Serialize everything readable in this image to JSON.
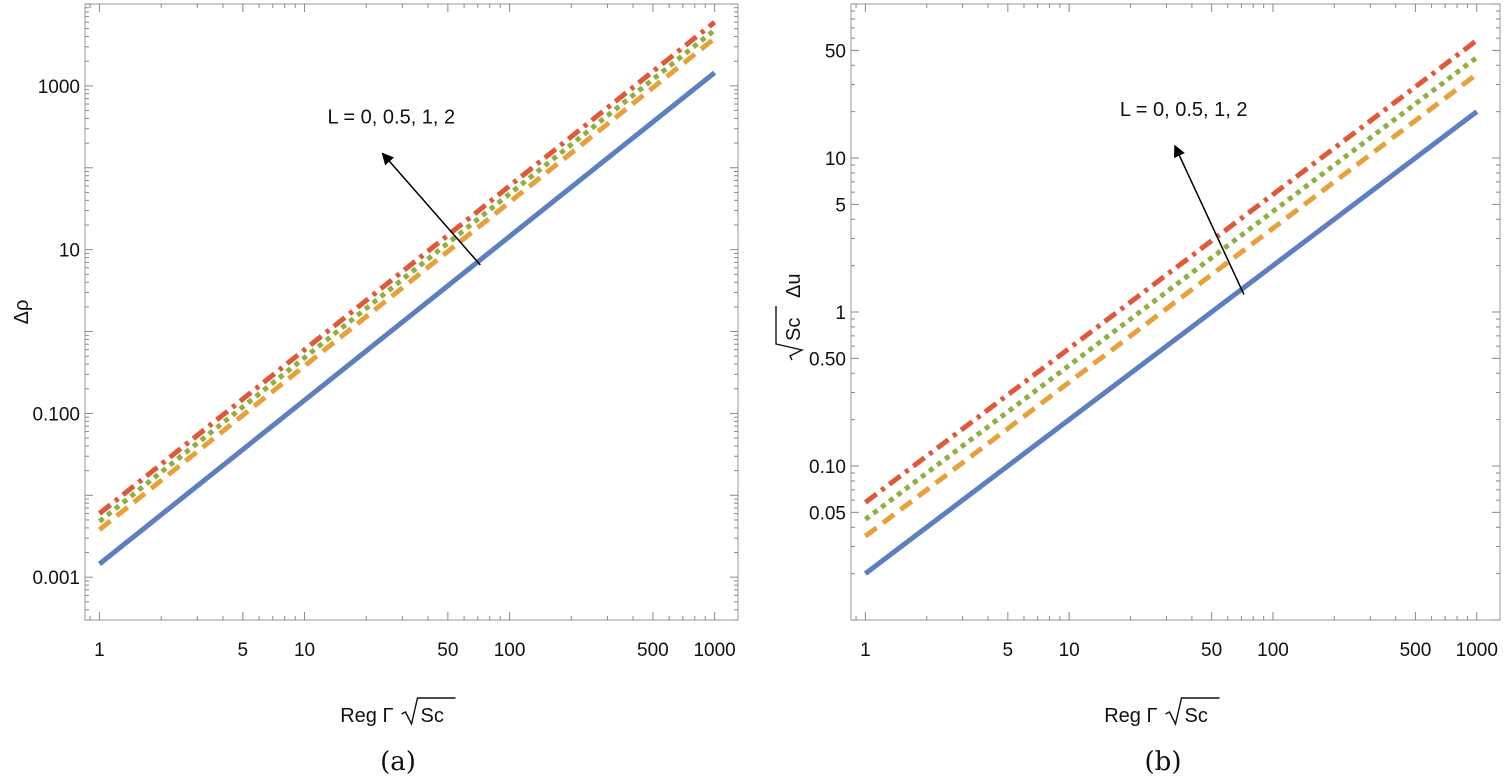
{
  "chart_data": [
    {
      "id": "a",
      "type": "line",
      "xscale": "log",
      "yscale": "log",
      "xlim": [
        0.85,
        1300
      ],
      "ylim": [
        0.0003,
        10000
      ],
      "xticks": [
        1,
        5,
        10,
        50,
        100,
        500,
        1000
      ],
      "xtick_labels": [
        "1",
        "5",
        "10",
        "50",
        "100",
        "500",
        "1000"
      ],
      "yticks": [
        0.001,
        0.1,
        10,
        1000
      ],
      "ytick_labels": [
        "0.001",
        "0.100",
        "10",
        "1000"
      ],
      "xlabel": "Reg Γ √Sc",
      "xlabel_parts": {
        "prefix": "Reg Γ",
        "radicand": "Sc"
      },
      "ylabel": "Δρ",
      "caption": "(a)",
      "annotation": {
        "text": "L = 0, 0.5, 1, 2",
        "arrow_from": [
          72,
          6.5
        ],
        "arrow_to": [
          24,
          150
        ]
      },
      "series": [
        {
          "name": "L = 0",
          "style": "solid",
          "color": "#5b7fbf",
          "x": [
            1,
            1000
          ],
          "y": [
            0.00145,
            1450
          ]
        },
        {
          "name": "L = 0.5",
          "style": "dashed",
          "color": "#e8a13a",
          "x": [
            1,
            1000
          ],
          "y": [
            0.0038,
            3800
          ]
        },
        {
          "name": "L = 1",
          "style": "dotted",
          "color": "#8fb040",
          "x": [
            1,
            1000
          ],
          "y": [
            0.0048,
            4800
          ]
        },
        {
          "name": "L = 2",
          "style": "dashdot",
          "color": "#e0583a",
          "x": [
            1,
            1000
          ],
          "y": [
            0.006,
            6000
          ]
        }
      ]
    },
    {
      "id": "b",
      "type": "line",
      "xscale": "log",
      "yscale": "log",
      "xlim": [
        0.85,
        1300
      ],
      "ylim": [
        0.01,
        100
      ],
      "xticks": [
        1,
        5,
        10,
        50,
        100,
        500,
        1000
      ],
      "xtick_labels": [
        "1",
        "5",
        "10",
        "50",
        "100",
        "500",
        "1000"
      ],
      "yticks": [
        0.05,
        0.1,
        0.5,
        1,
        5,
        10,
        50
      ],
      "ytick_labels": [
        "0.05",
        "0.10",
        "0.50",
        "1",
        "5",
        "10",
        "50"
      ],
      "xlabel": "Reg Γ √Sc",
      "xlabel_parts": {
        "prefix": "Reg Γ",
        "radicand": "Sc"
      },
      "ylabel": "√Sc Δu",
      "ylabel_parts": {
        "radicand": "Sc",
        "suffix": "Δu"
      },
      "caption": "(b)",
      "annotation": {
        "text": "L = 0, 0.5, 1, 2",
        "arrow_from": [
          72,
          1.3
        ],
        "arrow_to": [
          33,
          12
        ]
      },
      "series": [
        {
          "name": "L = 0",
          "style": "solid",
          "color": "#5b7fbf",
          "x": [
            1,
            1000
          ],
          "y": [
            0.02,
            20
          ]
        },
        {
          "name": "L = 0.5",
          "style": "dashed",
          "color": "#e8a13a",
          "x": [
            1,
            1000
          ],
          "y": [
            0.035,
            35
          ]
        },
        {
          "name": "L = 1",
          "style": "dotted",
          "color": "#8fb040",
          "x": [
            1,
            1000
          ],
          "y": [
            0.045,
            45
          ]
        },
        {
          "name": "L = 2",
          "style": "dashdot",
          "color": "#e0583a",
          "x": [
            1,
            1000
          ],
          "y": [
            0.058,
            58
          ]
        }
      ]
    }
  ]
}
